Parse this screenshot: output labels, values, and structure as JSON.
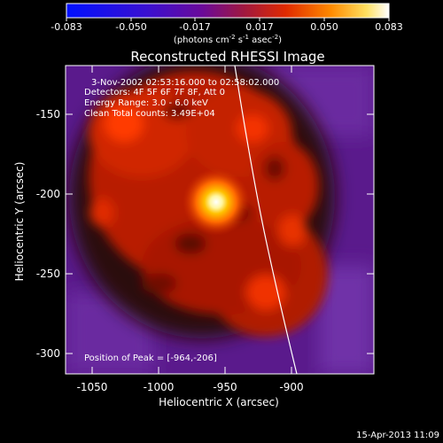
{
  "colorbar": {
    "ticks": [
      "-0.083",
      "-0.050",
      "-0.017",
      "0.017",
      "0.050",
      "0.083"
    ],
    "units_prefix": "(photons cm",
    "units_exp1": "-2",
    "units_mid": " s",
    "units_exp2": "-1",
    "units_mid2": " asec",
    "units_exp3": "-2",
    "units_suffix": ")"
  },
  "title": "Reconstructed RHESSI Image",
  "info": {
    "time_range": "3-Nov-2002 02:53:16.000 to 02:58:02.000",
    "detectors": "Detectors: 4F 5F 6F 7F 8F, Att 0",
    "energy": "Energy Range: 3.0 - 6.0 keV",
    "method": "Clean     Total counts: 3.49E+04",
    "peak": "Position of Peak = [-964,-206]"
  },
  "axes": {
    "x_label": "Heliocentric X (arcsec)",
    "y_label": "Heliocentric Y (arcsec)",
    "x_ticks": [
      "-1050",
      "-1000",
      "-950",
      "-900"
    ],
    "y_ticks": [
      "-150",
      "-200",
      "-250",
      "-300"
    ]
  },
  "footer_timestamp": "15-Apr-2013 11:09",
  "colors": {
    "background": "#000000",
    "limb_line": "#ffffff",
    "colormap": [
      "#0000ff",
      "#5a00b4",
      "#8a1e6e",
      "#c81e00",
      "#ff7800",
      "#ffff78",
      "#ffffff"
    ]
  }
}
